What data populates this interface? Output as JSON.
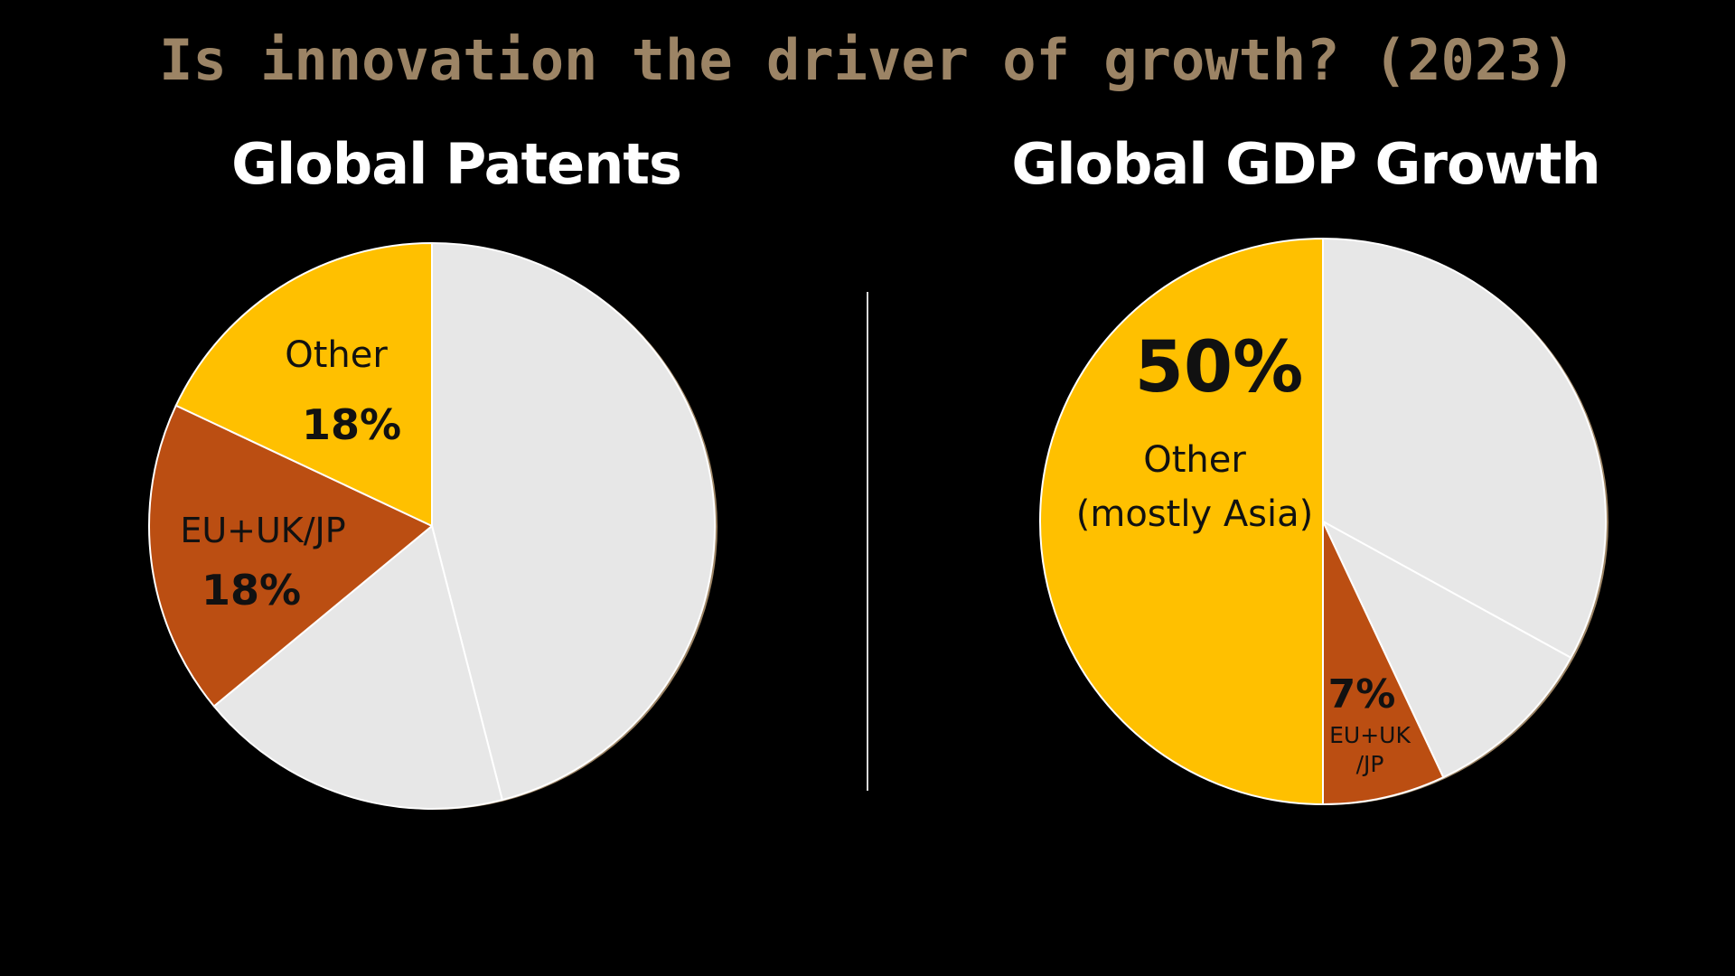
{
  "title": "Is innovation the driver of growth? (2023)",
  "colors": {
    "other": "#FFC000",
    "eu": "#BB4E12",
    "rest": "#E7E7E7",
    "rim": "#9C8465",
    "title": "#9C8465"
  },
  "chart_data": [
    {
      "type": "pie",
      "title": "Global Patents",
      "slices": [
        {
          "label": "",
          "value": 46,
          "color": "#E7E7E7"
        },
        {
          "label": "",
          "value": 18,
          "color": "#E7E7E7"
        },
        {
          "label": "EU+UK/JP",
          "value": 18,
          "value_label": "18%",
          "color": "#BB4E12"
        },
        {
          "label": "Other",
          "value": 18,
          "value_label": "18%",
          "color": "#FFC000"
        }
      ]
    },
    {
      "type": "pie",
      "title": "Global GDP Growth",
      "slices": [
        {
          "label": "",
          "value": 33,
          "color": "#E7E7E7"
        },
        {
          "label": "",
          "value": 10,
          "color": "#E7E7E7"
        },
        {
          "label": "EU+UK /JP",
          "value": 7,
          "value_label": "7%",
          "color": "#BB4E12"
        },
        {
          "label": "Other (mostly Asia)",
          "value": 50,
          "value_label": "50%",
          "color": "#FFC000"
        }
      ]
    }
  ],
  "labels": {
    "left": {
      "other_name": "Other",
      "other_pct": "18%",
      "eu_name": "EU+UK/JP",
      "eu_pct": "18%"
    },
    "right": {
      "other_pct": "50%",
      "other_line1": "Other",
      "other_line2": "(mostly Asia)",
      "eu_pct": "7%",
      "eu_line1": "EU+UK",
      "eu_line2": "/JP"
    }
  }
}
